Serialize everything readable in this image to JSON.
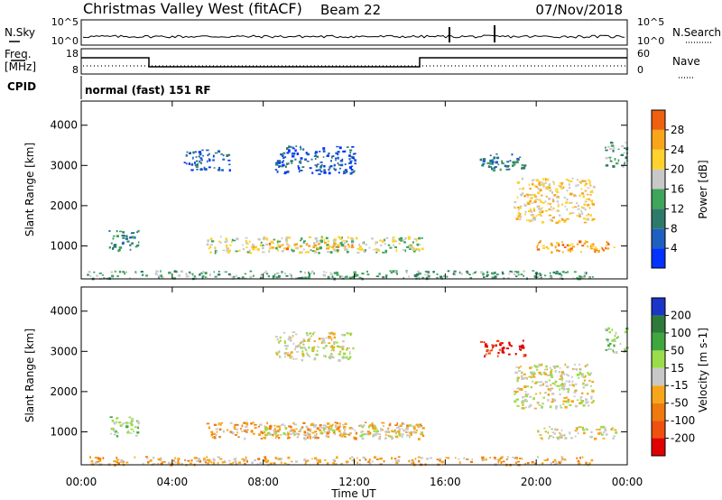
{
  "header": {
    "title": "Christmas Valley West (fitACF)",
    "beam": "Beam 22",
    "date": "07/Nov/2018"
  },
  "top_panels": {
    "nsky_label": "N.Sky",
    "nsky_ticks": [
      "10^5",
      "10^0"
    ],
    "nsearch_label": "N.Search",
    "nsearch_ticks": [
      "10^5",
      "10^0"
    ],
    "freq_label": "Freq.",
    "freq_unit": "[MHz]",
    "freq_ticks": [
      "18",
      "8"
    ],
    "nave_label": "Nave",
    "nave_ticks": [
      "60",
      "0"
    ],
    "cpid_label": "CPID",
    "cpid_text": "normal (fast) 151 RF"
  },
  "colors": {
    "power": [
      "#0033ff",
      "#1f5fc0",
      "#2e7a6a",
      "#3fa45c",
      "#c8c8c8",
      "#ffd22e",
      "#f7a51a",
      "#ef6010",
      "#e00000"
    ],
    "velocity": [
      "#1a35c8",
      "#2e7a3a",
      "#3ea83e",
      "#9adc4a",
      "#c8c8c8",
      "#f7a51a",
      "#ef7a10",
      "#ef5010",
      "#e00000"
    ]
  },
  "chart_data": [
    {
      "type": "heatmap",
      "name_id": "power-panel",
      "xlabel": "",
      "ylabel": "Slant Range [km]",
      "x_ticks": [
        "00:00",
        "04:00",
        "08:00",
        "12:00",
        "16:00",
        "20:00",
        "00:00"
      ],
      "y_ticks": [
        "1000",
        "2000",
        "3000",
        "4000"
      ],
      "ylim": [
        180,
        4600
      ],
      "xlim_hours": [
        0,
        24
      ],
      "colorbar_label": "Power [dB]",
      "colorbar_ticks": [
        "4",
        "8",
        "12",
        "16",
        "20",
        "24",
        "28"
      ],
      "regions": [
        {
          "t0": 0.2,
          "t1": 22.5,
          "r0": 200,
          "r1": 400,
          "level": 3
        },
        {
          "t0": 1.2,
          "t1": 2.5,
          "r0": 900,
          "r1": 1400,
          "level": 2
        },
        {
          "t0": 5.5,
          "t1": 15.0,
          "r0": 850,
          "r1": 1250,
          "level": 4
        },
        {
          "t0": 7.0,
          "t1": 12.0,
          "r0": 950,
          "r1": 1100,
          "level": 6
        },
        {
          "t0": 19.0,
          "t1": 22.5,
          "r0": 1600,
          "r1": 2700,
          "level": 5
        },
        {
          "t0": 20.0,
          "t1": 23.5,
          "r0": 850,
          "r1": 1150,
          "level": 6
        },
        {
          "t0": 8.5,
          "t1": 12.0,
          "r0": 2800,
          "r1": 3500,
          "level": 1
        },
        {
          "t0": 4.5,
          "t1": 6.5,
          "r0": 2900,
          "r1": 3400,
          "level": 1
        },
        {
          "t0": 17.5,
          "t1": 19.5,
          "r0": 2900,
          "r1": 3300,
          "level": 2
        },
        {
          "t0": 23.0,
          "t1": 24.0,
          "r0": 3000,
          "r1": 3600,
          "level": 3
        }
      ]
    },
    {
      "type": "heatmap",
      "name_id": "velocity-panel",
      "xlabel": "Time UT",
      "ylabel": "Slant Range [km]",
      "x_ticks": [
        "00:00",
        "04:00",
        "08:00",
        "12:00",
        "16:00",
        "20:00",
        "00:00"
      ],
      "y_ticks": [
        "1000",
        "2000",
        "3000",
        "4000"
      ],
      "ylim": [
        180,
        4600
      ],
      "xlim_hours": [
        0,
        24
      ],
      "colorbar_label": "Velocity [m s-1]",
      "colorbar_ticks": [
        "200",
        "100",
        "50",
        "15",
        "-15",
        "-50",
        "-100",
        "-200"
      ],
      "regions": [
        {
          "t0": 0.2,
          "t1": 22.5,
          "r0": 200,
          "r1": 400,
          "level": 5
        },
        {
          "t0": 1.2,
          "t1": 2.5,
          "r0": 900,
          "r1": 1400,
          "level": 3
        },
        {
          "t0": 5.5,
          "t1": 15.0,
          "r0": 850,
          "r1": 1250,
          "level": 5
        },
        {
          "t0": 8.0,
          "t1": 15.0,
          "r0": 900,
          "r1": 1200,
          "level": 4
        },
        {
          "t0": 19.0,
          "t1": 22.5,
          "r0": 1600,
          "r1": 2700,
          "level": 4
        },
        {
          "t0": 20.0,
          "t1": 23.5,
          "r0": 850,
          "r1": 1150,
          "level": 4
        },
        {
          "t0": 8.5,
          "t1": 12.0,
          "r0": 2800,
          "r1": 3500,
          "level": 4
        },
        {
          "t0": 17.5,
          "t1": 19.5,
          "r0": 2900,
          "r1": 3300,
          "level": 8
        },
        {
          "t0": 23.0,
          "t1": 24.0,
          "r0": 3000,
          "r1": 3600,
          "level": 3
        }
      ]
    }
  ]
}
